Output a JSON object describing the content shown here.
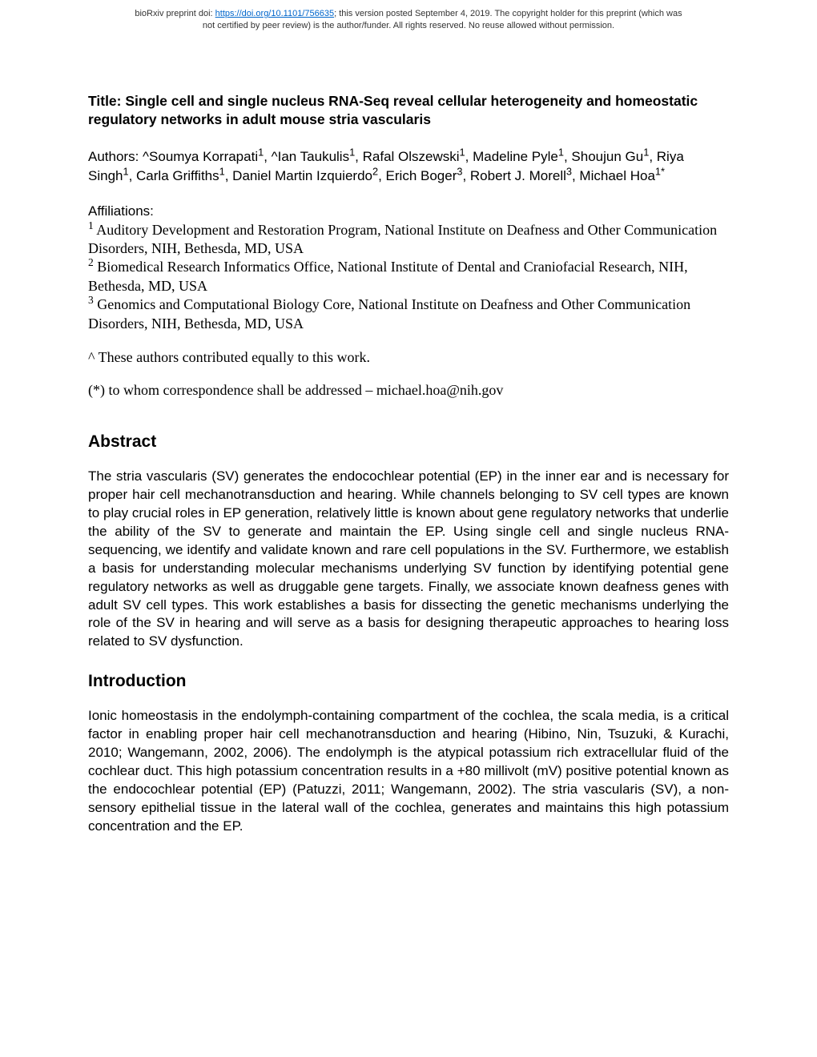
{
  "header": {
    "prefix": "bioRxiv preprint doi: ",
    "doi_link": "https://doi.org/10.1101/756635",
    "line1_rest": "; this version posted September 4, 2019. The copyright holder for this preprint (which was",
    "line2": "not certified by peer review) is the author/funder. All rights reserved. No reuse allowed without permission."
  },
  "title": {
    "label": "Title: ",
    "text": "Single cell and single nucleus RNA-Seq reveal cellular heterogeneity and homeostatic regulatory networks in adult mouse stria vascularis"
  },
  "authors": {
    "label": "Authors: ",
    "text_html": "^Soumya Korrapati<sup>1</sup>, ^Ian Taukulis<sup>1</sup>, Rafal Olszewski<sup>1</sup>, Madeline Pyle<sup>1</sup>, Shoujun Gu<sup>1</sup>, Riya Singh<sup>1</sup>, Carla Griffiths<sup>1</sup>, Daniel Martin Izquierdo<sup>2</sup>, Erich Boger<sup>3</sup>, Robert J. Morell<sup>3</sup>, Michael Hoa<sup>1*</sup>"
  },
  "affiliations": {
    "label": "Affiliations:",
    "items_html": "<sup>1</sup> Auditory Development and Restoration Program, National Institute on Deafness and Other Communication Disorders, NIH, Bethesda, MD, USA<br><sup>2</sup> Biomedical Research Informatics Office, National Institute of Dental and Craniofacial Research, NIH, Bethesda, MD, USA<br><sup>3</sup> Genomics and Computational Biology Core, National Institute on Deafness and Other Communication Disorders, NIH, Bethesda, MD, USA"
  },
  "equal_contrib": "^ These authors contributed equally to this work.",
  "correspondence": "(*) to whom correspondence shall be addressed – michael.hoa@nih.gov",
  "abstract": {
    "heading": "Abstract",
    "text": "The stria vascularis (SV) generates the endocochlear potential (EP) in the inner ear and is necessary for proper hair cell mechanotransduction and hearing. While channels belonging to SV cell types are known to play crucial roles in EP generation, relatively little is known about gene regulatory networks that underlie the ability of the SV to generate and maintain the EP. Using single cell and single nucleus RNA-sequencing, we identify and validate known and rare cell populations in the SV. Furthermore, we establish a basis for understanding molecular mechanisms underlying SV function by identifying potential gene regulatory networks as well as druggable gene targets. Finally, we associate known deafness genes with adult SV cell types. This work establishes a basis for dissecting the genetic mechanisms underlying the role of the SV in hearing and will serve as a basis for designing therapeutic approaches to hearing loss related to SV dysfunction."
  },
  "introduction": {
    "heading": "Introduction",
    "text": "Ionic homeostasis in the endolymph-containing compartment of the cochlea, the scala media, is a critical factor in enabling proper hair cell mechanotransduction and hearing (Hibino, Nin, Tsuzuki, & Kurachi, 2010; Wangemann, 2002, 2006). The endolymph is the atypical potassium rich extracellular fluid of the cochlear duct. This high potassium concentration results in a +80 millivolt (mV) positive potential known as the endocochlear potential (EP) (Patuzzi, 2011; Wangemann, 2002). The stria vascularis (SV), a non-sensory epithelial tissue in the lateral wall of the cochlea, generates and maintains this high potassium concentration and the EP."
  }
}
